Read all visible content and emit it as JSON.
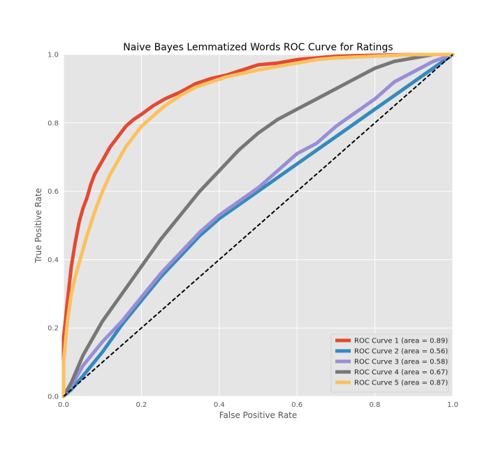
{
  "chart_data": {
    "type": "line",
    "title": "Naive Bayes Lemmatized Words ROC Curve for Ratings",
    "xlabel": "False Positive Rate",
    "ylabel": "True Positive Rate",
    "xlim": [
      0.0,
      1.0
    ],
    "ylim": [
      0.0,
      1.0
    ],
    "xticks": [
      "0.0",
      "0.2",
      "0.4",
      "0.6",
      "0.8",
      "1.0"
    ],
    "yticks": [
      "0.0",
      "0.2",
      "0.4",
      "0.6",
      "0.8",
      "1.0"
    ],
    "grid": true,
    "legend_position": "lower-right",
    "series": [
      {
        "name": "ROC Curve 1 (area = 0.89)",
        "color": "#E24A33",
        "x": [
          0.0,
          0.0,
          0.01,
          0.02,
          0.03,
          0.04,
          0.05,
          0.06,
          0.07,
          0.08,
          0.1,
          0.12,
          0.14,
          0.16,
          0.18,
          0.2,
          0.23,
          0.26,
          0.3,
          0.34,
          0.38,
          0.42,
          0.46,
          0.5,
          0.55,
          0.6,
          0.65,
          0.7,
          0.8,
          0.9,
          1.0
        ],
        "y": [
          0.0,
          0.17,
          0.28,
          0.38,
          0.45,
          0.51,
          0.55,
          0.58,
          0.62,
          0.65,
          0.69,
          0.73,
          0.76,
          0.79,
          0.81,
          0.825,
          0.85,
          0.87,
          0.89,
          0.915,
          0.93,
          0.94,
          0.955,
          0.97,
          0.975,
          0.985,
          0.99,
          0.995,
          0.998,
          1.0,
          1.0
        ]
      },
      {
        "name": "ROC Curve 2 (area = 0.56)",
        "color": "#348ABD",
        "x": [
          0.0,
          0.02,
          0.05,
          0.1,
          0.15,
          0.2,
          0.25,
          0.3,
          0.35,
          0.4,
          0.45,
          0.5,
          0.55,
          0.6,
          0.65,
          0.7,
          0.75,
          0.8,
          0.85,
          0.9,
          0.95,
          1.0
        ],
        "y": [
          0.0,
          0.02,
          0.06,
          0.13,
          0.21,
          0.28,
          0.35,
          0.41,
          0.47,
          0.52,
          0.56,
          0.6,
          0.64,
          0.68,
          0.72,
          0.76,
          0.8,
          0.84,
          0.88,
          0.92,
          0.96,
          1.0
        ]
      },
      {
        "name": "ROC Curve 3 (area = 0.58)",
        "color": "#988ED5",
        "x": [
          0.0,
          0.02,
          0.05,
          0.1,
          0.15,
          0.2,
          0.25,
          0.3,
          0.35,
          0.4,
          0.45,
          0.5,
          0.55,
          0.6,
          0.65,
          0.7,
          0.75,
          0.8,
          0.85,
          0.9,
          0.95,
          1.0
        ],
        "y": [
          0.0,
          0.03,
          0.09,
          0.16,
          0.22,
          0.29,
          0.36,
          0.42,
          0.48,
          0.53,
          0.57,
          0.61,
          0.66,
          0.71,
          0.74,
          0.79,
          0.83,
          0.87,
          0.92,
          0.95,
          0.98,
          1.0
        ]
      },
      {
        "name": "ROC Curve 4 (area = 0.67)",
        "color": "#777777",
        "x": [
          0.0,
          0.02,
          0.05,
          0.1,
          0.15,
          0.2,
          0.25,
          0.3,
          0.35,
          0.4,
          0.45,
          0.5,
          0.55,
          0.6,
          0.65,
          0.7,
          0.75,
          0.8,
          0.85,
          0.9,
          0.95,
          1.0
        ],
        "y": [
          0.0,
          0.04,
          0.12,
          0.22,
          0.3,
          0.38,
          0.46,
          0.53,
          0.6,
          0.66,
          0.72,
          0.77,
          0.81,
          0.84,
          0.87,
          0.9,
          0.93,
          0.96,
          0.98,
          0.99,
          1.0,
          1.0
        ]
      },
      {
        "name": "ROC Curve 5 (area = 0.87)",
        "color": "#FBC15E",
        "x": [
          0.0,
          0.0,
          0.01,
          0.02,
          0.03,
          0.04,
          0.05,
          0.06,
          0.08,
          0.1,
          0.12,
          0.14,
          0.16,
          0.18,
          0.2,
          0.23,
          0.26,
          0.3,
          0.34,
          0.38,
          0.42,
          0.46,
          0.5,
          0.55,
          0.6,
          0.65,
          0.7,
          0.8,
          0.9,
          1.0
        ],
        "y": [
          0.0,
          0.1,
          0.22,
          0.3,
          0.35,
          0.39,
          0.43,
          0.47,
          0.54,
          0.6,
          0.65,
          0.69,
          0.73,
          0.76,
          0.79,
          0.82,
          0.85,
          0.88,
          0.905,
          0.92,
          0.935,
          0.945,
          0.955,
          0.965,
          0.975,
          0.985,
          0.99,
          0.995,
          1.0,
          1.0
        ]
      }
    ],
    "reference_line": {
      "x": [
        0.0,
        1.0
      ],
      "y": [
        0.0,
        1.0
      ],
      "color": "#000000",
      "style": "dashed"
    }
  }
}
